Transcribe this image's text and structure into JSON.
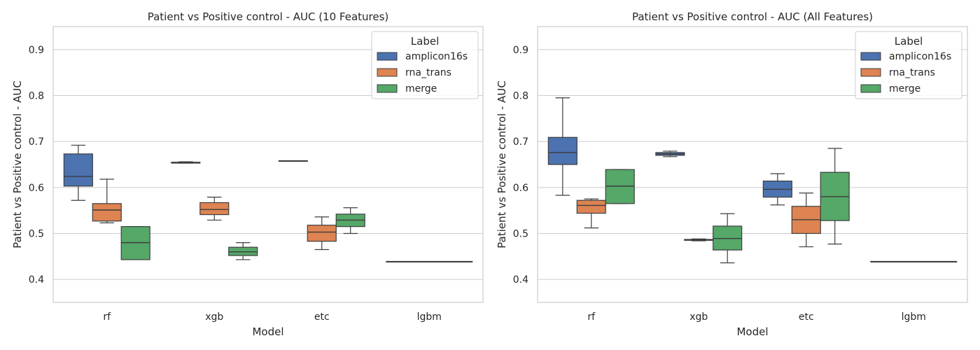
{
  "chart_data": [
    {
      "type": "box",
      "title": "Patient vs Positive control - AUC (10 Features)",
      "xlabel": "Model",
      "ylabel": "Patient vs Positive control - AUC",
      "categories": [
        "rf",
        "xgb",
        "etc",
        "lgbm"
      ],
      "ylim": [
        0.35,
        0.95
      ],
      "yticks": [
        "0.4",
        "0.5",
        "0.6",
        "0.7",
        "0.8",
        "0.9"
      ],
      "grid": "horizontal",
      "legend": {
        "title": "Label",
        "placement": "top-right"
      },
      "series": [
        {
          "name": "amplicon16s",
          "color": "#4c72b0",
          "boxes": [
            {
              "min": 0.572,
              "q1": 0.603,
              "median": 0.624,
              "q3": 0.673,
              "max": 0.692
            },
            {
              "min": 0.653,
              "q1": 0.653,
              "median": 0.654,
              "q3": 0.655,
              "max": 0.656
            },
            {
              "min": 0.658,
              "q1": 0.658,
              "median": 0.658,
              "q3": 0.658,
              "max": 0.658
            },
            {
              "min": 0.439,
              "q1": 0.439,
              "median": 0.439,
              "q3": 0.439,
              "max": 0.439
            }
          ]
        },
        {
          "name": "rna_trans",
          "color": "#dd8452",
          "boxes": [
            {
              "min": 0.523,
              "q1": 0.527,
              "median": 0.551,
              "q3": 0.565,
              "max": 0.618
            },
            {
              "min": 0.529,
              "q1": 0.541,
              "median": 0.552,
              "q3": 0.567,
              "max": 0.579
            },
            {
              "min": 0.465,
              "q1": 0.483,
              "median": 0.503,
              "q3": 0.518,
              "max": 0.536
            },
            {
              "min": 0.439,
              "q1": 0.439,
              "median": 0.439,
              "q3": 0.439,
              "max": 0.439
            }
          ]
        },
        {
          "name": "merge",
          "color": "#55a868",
          "boxes": [
            {
              "min": 0.443,
              "q1": 0.443,
              "median": 0.48,
              "q3": 0.515,
              "max": 0.515
            },
            {
              "min": 0.443,
              "q1": 0.452,
              "median": 0.46,
              "q3": 0.47,
              "max": 0.48
            },
            {
              "min": 0.5,
              "q1": 0.515,
              "median": 0.529,
              "q3": 0.542,
              "max": 0.556
            },
            {
              "min": 0.439,
              "q1": 0.439,
              "median": 0.439,
              "q3": 0.439,
              "max": 0.439
            }
          ]
        }
      ]
    },
    {
      "type": "box",
      "title": "Patient vs Positive control - AUC (All Features)",
      "xlabel": "Model",
      "ylabel": "Patient vs Positive control - AUC",
      "categories": [
        "rf",
        "xgb",
        "etc",
        "lgbm"
      ],
      "ylim": [
        0.35,
        0.95
      ],
      "yticks": [
        "0.4",
        "0.5",
        "0.6",
        "0.7",
        "0.8",
        "0.9"
      ],
      "grid": "horizontal",
      "legend": {
        "title": "Label",
        "placement": "top-right"
      },
      "series": [
        {
          "name": "amplicon16s",
          "color": "#4c72b0",
          "boxes": [
            {
              "min": 0.583,
              "q1": 0.65,
              "median": 0.676,
              "q3": 0.709,
              "max": 0.795
            },
            {
              "min": 0.667,
              "q1": 0.67,
              "median": 0.673,
              "q3": 0.676,
              "max": 0.679
            },
            {
              "min": 0.562,
              "q1": 0.579,
              "median": 0.596,
              "q3": 0.614,
              "max": 0.63
            },
            {
              "min": 0.439,
              "q1": 0.439,
              "median": 0.439,
              "q3": 0.439,
              "max": 0.439
            }
          ]
        },
        {
          "name": "rna_trans",
          "color": "#dd8452",
          "boxes": [
            {
              "min": 0.512,
              "q1": 0.544,
              "median": 0.561,
              "q3": 0.572,
              "max": 0.575
            },
            {
              "min": 0.484,
              "q1": 0.485,
              "median": 0.486,
              "q3": 0.487,
              "max": 0.488
            },
            {
              "min": 0.471,
              "q1": 0.5,
              "median": 0.53,
              "q3": 0.559,
              "max": 0.588
            },
            {
              "min": 0.439,
              "q1": 0.439,
              "median": 0.439,
              "q3": 0.439,
              "max": 0.439
            }
          ]
        },
        {
          "name": "merge",
          "color": "#55a868",
          "boxes": [
            {
              "min": 0.565,
              "q1": 0.565,
              "median": 0.603,
              "q3": 0.639,
              "max": 0.639
            },
            {
              "min": 0.436,
              "q1": 0.464,
              "median": 0.489,
              "q3": 0.516,
              "max": 0.543
            },
            {
              "min": 0.477,
              "q1": 0.528,
              "median": 0.58,
              "q3": 0.633,
              "max": 0.685
            },
            {
              "min": 0.439,
              "q1": 0.439,
              "median": 0.439,
              "q3": 0.439,
              "max": 0.439
            }
          ]
        }
      ]
    }
  ]
}
